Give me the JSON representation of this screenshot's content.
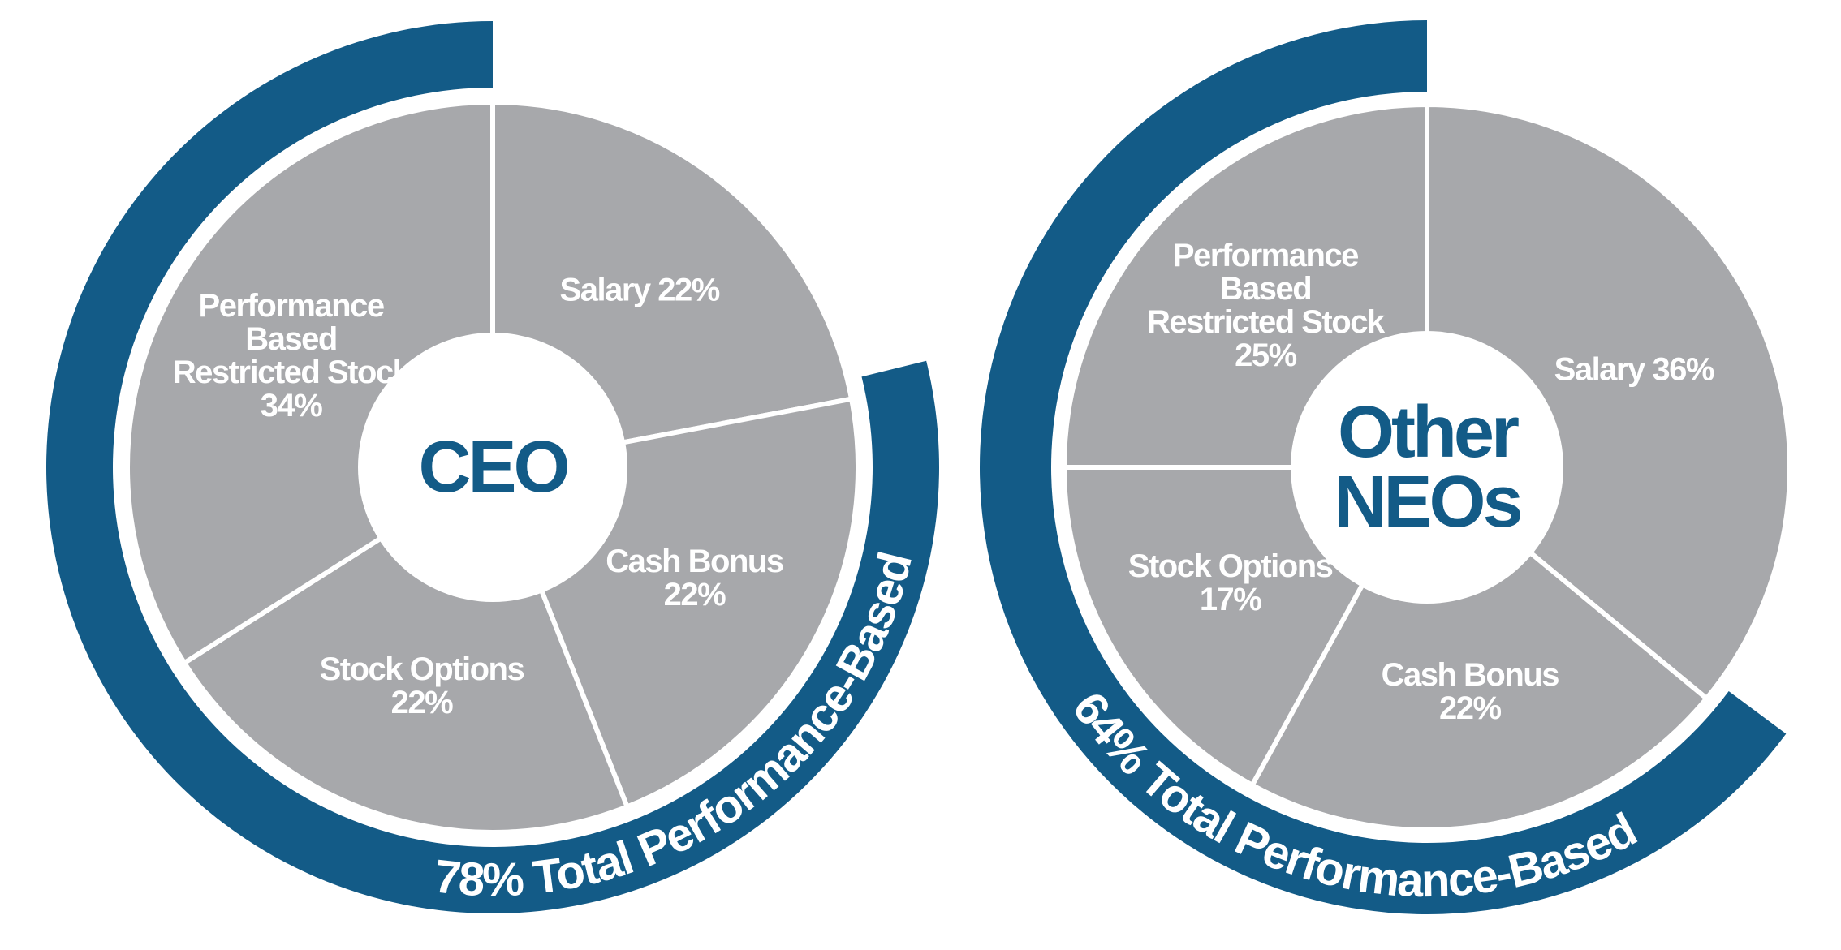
{
  "chart_data": [
    {
      "type": "pie",
      "center_label": "CEO",
      "annotation": "78% Total Performance-Based",
      "categories": [
        "Salary",
        "Cash Bonus",
        "Stock Options",
        "Performance Based Restricted Stock"
      ],
      "values": [
        22,
        22,
        22,
        34
      ],
      "value_labels": [
        "22%",
        "22%",
        "22%",
        "34%"
      ],
      "color": "#a7a8ab",
      "band_color": "#135b87"
    },
    {
      "type": "pie",
      "center_label": "Other NEOs",
      "annotation": "64% Total Performance-Based",
      "categories": [
        "Salary",
        "Cash Bonus",
        "Stock Options",
        "Performance Based Restricted Stock"
      ],
      "values": [
        36,
        22,
        17,
        25
      ],
      "value_labels": [
        "36%",
        "22%",
        "17%",
        "25%"
      ],
      "color": "#a7a8ab",
      "band_color": "#135b87"
    }
  ]
}
